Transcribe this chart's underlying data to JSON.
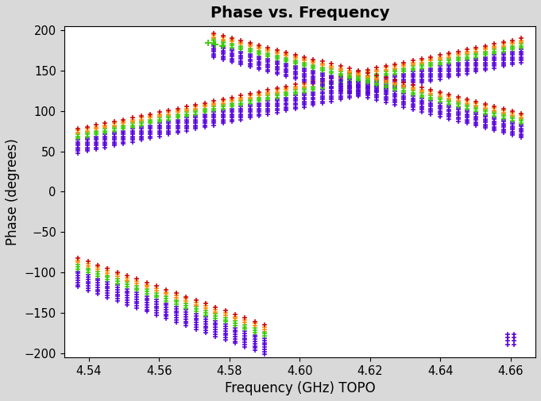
{
  "title": "Phase vs. Frequency",
  "xlabel": "Frequency (GHz) TOPO",
  "ylabel": "Phase (degrees)",
  "xlim": [
    4.533,
    4.667
  ],
  "ylim": [
    -205,
    205
  ],
  "xticks": [
    4.54,
    4.56,
    4.58,
    4.6,
    4.62,
    4.64,
    4.66
  ],
  "yticks": [
    -200,
    -150,
    -100,
    -50,
    0,
    50,
    100,
    150,
    200
  ],
  "bg_color": "#d9d9d9",
  "plot_bg_color": "#ffffff",
  "colors_order": [
    "#5500dd",
    "#5500dd",
    "#5500dd",
    "#5500dd",
    "#5500dd",
    "#5500dd",
    "#5500dd",
    "#5500dd",
    "#33cc00",
    "#33cc00",
    "#33cc00",
    "#ff8800",
    "#ff8800",
    "#cc0000"
  ],
  "title_fontsize": 14,
  "label_fontsize": 12,
  "freq_start": 4.537,
  "freq_end": 4.593,
  "freq_start_all": 4.537,
  "freq_end_all": 4.663,
  "n_chan_lower": 22,
  "n_chan_upper": 50,
  "n_baselines": 14
}
